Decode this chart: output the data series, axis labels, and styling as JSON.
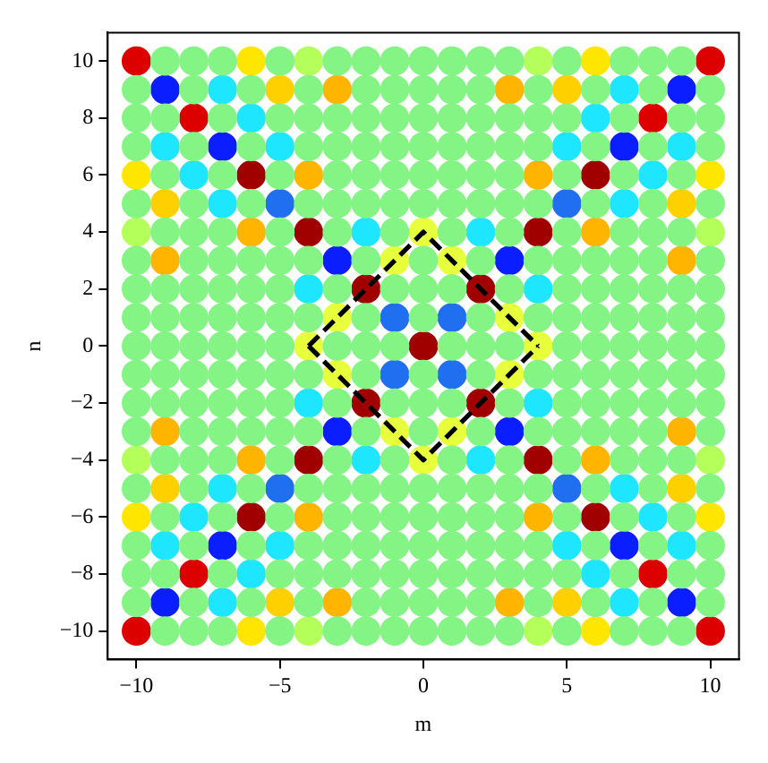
{
  "chart_data": {
    "type": "scatter",
    "xlabel": "m",
    "ylabel": "n",
    "xlim": [
      -11,
      11
    ],
    "ylim": [
      -11,
      11
    ],
    "xticks": [
      -10,
      -5,
      0,
      5,
      10
    ],
    "yticks": [
      -10,
      -8,
      -6,
      -4,
      -2,
      0,
      2,
      4,
      6,
      8,
      10
    ],
    "grid": false,
    "legend": false,
    "marker": "circle",
    "series": [
      {
        "color": "#84f584",
        "x": [
          -9,
          -8,
          -7,
          -5,
          -3,
          -2,
          -1,
          0,
          1,
          2,
          3,
          5,
          7,
          8,
          9,
          -10,
          -8,
          -6,
          -4,
          -2,
          -1,
          0,
          1,
          2,
          4,
          6,
          8,
          10,
          -10,
          -9,
          -7,
          -5,
          -4,
          -3,
          -2,
          -1,
          0,
          1,
          2,
          3,
          4,
          5,
          7,
          9,
          10,
          -10,
          -8,
          -6,
          -4,
          -3,
          -2,
          -1,
          0,
          1,
          2,
          3,
          4,
          6,
          8,
          10,
          -9,
          -7,
          -5,
          -3,
          -2,
          -1,
          0,
          1,
          2,
          3,
          5,
          7,
          9,
          -10,
          -8,
          -6,
          -4,
          -3,
          -2,
          -1,
          0,
          1,
          2,
          3,
          4,
          6,
          8,
          10,
          -9,
          -8,
          -7,
          -5,
          -3,
          -1,
          1,
          3,
          5,
          7,
          8,
          9,
          -10,
          -8,
          -7,
          -6,
          -5,
          -4,
          -2,
          0,
          2,
          4,
          5,
          6,
          7,
          8,
          10,
          -10,
          -9,
          -8,
          -7,
          -6,
          -5,
          -3,
          -1,
          0,
          1,
          3,
          5,
          6,
          7,
          8,
          9,
          10,
          -10,
          -9,
          -8,
          -7,
          -6,
          -5,
          -4,
          -2,
          0,
          2,
          4,
          5,
          6,
          7,
          8,
          9,
          10,
          -10,
          -9,
          -8,
          -7,
          -6,
          -5,
          -3,
          -2,
          -1,
          1,
          2,
          3,
          5,
          6,
          7,
          8,
          9,
          10,
          -10,
          -9,
          -8,
          -7,
          -6,
          -5,
          -4,
          -2,
          0,
          2,
          4,
          5,
          6,
          7,
          8,
          9,
          10,
          -10,
          -9,
          -8,
          -7,
          -6,
          -5,
          -3,
          -1,
          0,
          1,
          3,
          5,
          6,
          7,
          8,
          9,
          10,
          -10,
          -8,
          -7,
          -6,
          -5,
          -4,
          -2,
          0,
          2,
          4,
          5,
          6,
          7,
          8,
          10,
          -9,
          -8,
          -7,
          -5,
          -3,
          -1,
          1,
          3,
          5,
          7,
          8,
          9,
          -10,
          -8,
          -6,
          -4,
          -3,
          -2,
          -1,
          0,
          1,
          2,
          3,
          4,
          6,
          8,
          10,
          -9,
          -7,
          -5,
          -3,
          -2,
          -1,
          0,
          1,
          2,
          3,
          5,
          7,
          9,
          -10,
          -8,
          -6,
          -4,
          -3,
          -2,
          -1,
          0,
          1,
          2,
          3,
          4,
          6,
          8,
          10,
          -10,
          -9,
          -7,
          -5,
          -4,
          -3,
          -2,
          -1,
          0,
          1,
          2,
          3,
          4,
          5,
          7,
          9,
          10,
          -10,
          -8,
          -6,
          -4,
          -2,
          -1,
          0,
          1,
          2,
          4,
          6,
          8,
          10,
          -9,
          -8,
          -7,
          -5,
          -3,
          -2,
          -1,
          0,
          1,
          2,
          3,
          5,
          7,
          8,
          9
        ],
        "values": [
          10,
          10,
          10,
          10,
          10,
          10,
          10,
          10,
          10,
          10,
          10,
          10,
          10,
          10,
          10,
          9,
          9,
          9,
          9,
          9,
          9,
          9,
          9,
          9,
          9,
          9,
          9,
          9,
          8,
          8,
          8,
          8,
          8,
          8,
          8,
          8,
          8,
          8,
          8,
          8,
          8,
          8,
          8,
          8,
          8,
          7,
          7,
          7,
          7,
          7,
          7,
          7,
          7,
          7,
          7,
          7,
          7,
          7,
          7,
          7,
          6,
          6,
          6,
          6,
          6,
          6,
          6,
          6,
          6,
          6,
          6,
          6,
          6,
          5,
          5,
          5,
          5,
          5,
          5,
          5,
          5,
          5,
          5,
          5,
          5,
          5,
          5,
          5,
          4,
          4,
          4,
          4,
          4,
          4,
          4,
          4,
          4,
          4,
          4,
          4,
          3,
          3,
          3,
          3,
          3,
          3,
          3,
          3,
          3,
          3,
          3,
          3,
          3,
          3,
          3,
          2,
          2,
          2,
          2,
          2,
          2,
          2,
          2,
          2,
          2,
          2,
          2,
          2,
          2,
          2,
          2,
          2,
          1,
          1,
          1,
          1,
          1,
          1,
          1,
          1,
          1,
          1,
          1,
          1,
          1,
          1,
          1,
          1,
          1,
          0,
          0,
          0,
          0,
          0,
          0,
          0,
          0,
          0,
          0,
          0,
          0,
          0,
          0,
          0,
          0,
          0,
          0,
          -1,
          -1,
          -1,
          -1,
          -1,
          -1,
          -1,
          -1,
          -1,
          -1,
          -1,
          -1,
          -1,
          -1,
          -1,
          -1,
          -1,
          -2,
          -2,
          -2,
          -2,
          -2,
          -2,
          -2,
          -2,
          -2,
          -2,
          -2,
          -2,
          -2,
          -2,
          -2,
          -2,
          -2,
          -3,
          -3,
          -3,
          -3,
          -3,
          -3,
          -3,
          -3,
          -3,
          -3,
          -3,
          -3,
          -3,
          -3,
          -3,
          -4,
          -4,
          -4,
          -4,
          -4,
          -4,
          -4,
          -4,
          -4,
          -4,
          -4,
          -4,
          -5,
          -5,
          -5,
          -5,
          -5,
          -5,
          -5,
          -5,
          -5,
          -5,
          -5,
          -5,
          -5,
          -5,
          -5,
          -6,
          -6,
          -6,
          -6,
          -6,
          -6,
          -6,
          -6,
          -6,
          -6,
          -6,
          -6,
          -6,
          -7,
          -7,
          -7,
          -7,
          -7,
          -7,
          -7,
          -7,
          -7,
          -7,
          -7,
          -7,
          -7,
          -7,
          -7,
          -8,
          -8,
          -8,
          -8,
          -8,
          -8,
          -8,
          -8,
          -8,
          -8,
          -8,
          -8,
          -8,
          -8,
          -8,
          -8,
          -8,
          -9,
          -9,
          -9,
          -9,
          -9,
          -9,
          -9,
          -9,
          -9,
          -9,
          -9,
          -9,
          -9,
          -10,
          -10,
          -10,
          -10,
          -10,
          -10,
          -10,
          -10,
          -10,
          -10,
          -10,
          -10,
          -10,
          -10,
          -10
        ]
      },
      {
        "color": "#b4ff5a",
        "x": [
          -4,
          4,
          -4,
          4,
          -10,
          10,
          -10,
          10
        ],
        "values": [
          10,
          10,
          -10,
          -10,
          4,
          4,
          -4,
          -4
        ]
      },
      {
        "color": "#e8ff3c",
        "x": [
          0,
          0,
          -4,
          4,
          -1,
          1,
          -1,
          1,
          -3,
          3,
          -3,
          3
        ],
        "values": [
          4,
          -4,
          0,
          0,
          3,
          3,
          -3,
          -3,
          1,
          1,
          -1,
          -1
        ]
      },
      {
        "color": "#ffe600",
        "x": [
          -6,
          6,
          -6,
          6,
          -10,
          10,
          -10,
          10
        ],
        "values": [
          10,
          10,
          -10,
          -10,
          6,
          6,
          -6,
          -6
        ]
      },
      {
        "color": "#ffd000",
        "x": [
          -5,
          5,
          -5,
          5,
          -9,
          9,
          -9,
          9
        ],
        "values": [
          9,
          9,
          -9,
          -9,
          5,
          5,
          -5,
          -5
        ]
      },
      {
        "color": "#ffb400",
        "x": [
          -3,
          3,
          -3,
          3,
          -9,
          9,
          -9,
          9,
          -4,
          4,
          -4,
          4,
          -6,
          6,
          -6,
          6
        ],
        "values": [
          9,
          9,
          -9,
          -9,
          3,
          3,
          -3,
          -3,
          6,
          6,
          -6,
          -6,
          4,
          4,
          -4,
          -4
        ]
      },
      {
        "color": "#1ee6ff",
        "x": [
          -7,
          7,
          -7,
          7,
          -9,
          9,
          -9,
          9,
          -5,
          5,
          -5,
          5,
          -7,
          7,
          -7,
          7,
          -6,
          6,
          -6,
          6,
          -8,
          8,
          -8,
          8,
          -2,
          2,
          -2,
          2,
          -4,
          4,
          -4,
          4
        ],
        "values": [
          9,
          9,
          -9,
          -9,
          7,
          7,
          -7,
          -7,
          7,
          7,
          -7,
          -7,
          5,
          5,
          -5,
          -5,
          8,
          8,
          -8,
          -8,
          6,
          6,
          -6,
          -6,
          4,
          4,
          -4,
          -4,
          2,
          2,
          -2,
          -2
        ]
      },
      {
        "color": "#1f6ff0",
        "x": [
          -5,
          5,
          -5,
          5,
          -1,
          1,
          -1,
          1
        ],
        "values": [
          5,
          5,
          -5,
          -5,
          1,
          1,
          -1,
          -1
        ]
      },
      {
        "color": "#0a1eff",
        "x": [
          -9,
          9,
          -9,
          9,
          -7,
          7,
          -7,
          7,
          -3,
          3,
          -3,
          3
        ],
        "values": [
          9,
          9,
          -9,
          -9,
          7,
          7,
          -7,
          -7,
          3,
          3,
          -3,
          -3
        ]
      },
      {
        "color": "#a00000",
        "x": [
          -6,
          6,
          -6,
          6,
          -4,
          4,
          -4,
          4,
          -2,
          2,
          -2,
          2,
          0
        ],
        "values": [
          6,
          6,
          -6,
          -6,
          4,
          4,
          -4,
          -4,
          2,
          2,
          -2,
          -2,
          0
        ]
      },
      {
        "color": "#dc0000",
        "x": [
          -10,
          10,
          -10,
          10,
          -8,
          8,
          -8,
          8
        ],
        "values": [
          10,
          10,
          -10,
          -10,
          8,
          8,
          -8,
          -8
        ]
      },
      {
        "type": "line",
        "color": "#000000",
        "marker": "none",
        "line_style": "dashed",
        "x": [
          -4,
          0,
          4
        ],
        "values": [
          0,
          4,
          0
        ]
      },
      {
        "type": "line",
        "color": "#000000",
        "marker": "none",
        "line_style": "dashed",
        "x": [
          -4,
          0,
          4
        ],
        "values": [
          0,
          -4,
          0
        ]
      }
    ]
  }
}
